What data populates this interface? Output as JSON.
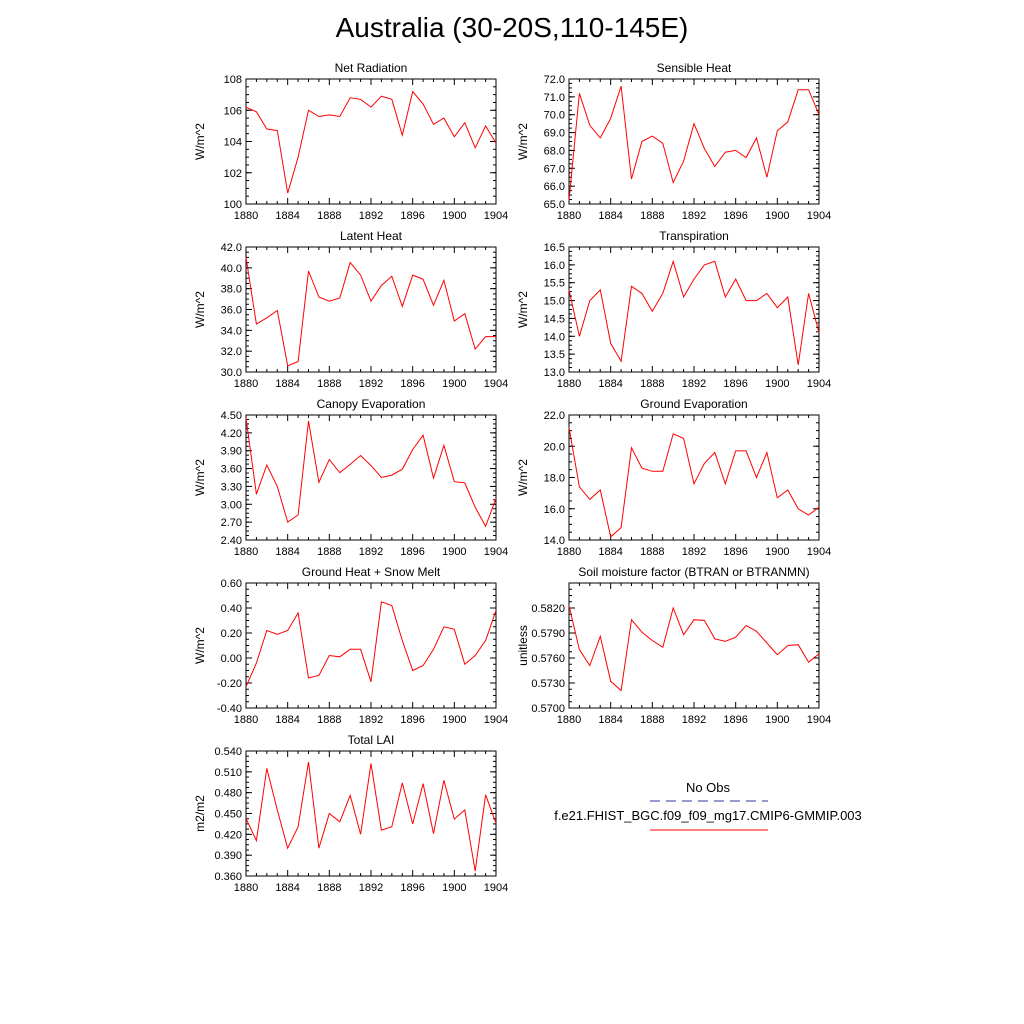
{
  "title": "Australia (30-20S,110-145E)",
  "line_color": "#ff0000",
  "obs_color": "#3333aa",
  "legend": {
    "obs_label": "No Obs",
    "model_label": "f.e21.FHIST_BGC.f09_f09_mg17.CMIP6-GMMIP.003"
  },
  "x_ticks": [
    "1880",
    "1884",
    "1888",
    "1892",
    "1896",
    "1900",
    "1904"
  ],
  "chart_data": [
    {
      "type": "line",
      "title": "Net Radiation",
      "ylabel": "W/m^2",
      "xlim": [
        1880,
        1904
      ],
      "ylim": [
        100,
        108
      ],
      "y_ticks": [
        "100",
        "102",
        "104",
        "106",
        "108"
      ],
      "x": [
        1880,
        1881,
        1882,
        1883,
        1884,
        1885,
        1886,
        1887,
        1888,
        1889,
        1890,
        1891,
        1892,
        1893,
        1894,
        1895,
        1896,
        1897,
        1898,
        1899,
        1900,
        1901,
        1902,
        1903,
        1904
      ],
      "series": [
        {
          "values": [
            106.2,
            105.9,
            104.8,
            104.7,
            100.7,
            103.0,
            106.0,
            105.6,
            105.7,
            105.6,
            106.8,
            106.7,
            106.2,
            106.9,
            106.7,
            104.4,
            107.2,
            106.4,
            105.1,
            105.5,
            104.3,
            105.2,
            103.6,
            105.0,
            103.9
          ]
        }
      ]
    },
    {
      "type": "line",
      "title": "Sensible Heat",
      "ylabel": "W/m^2",
      "xlim": [
        1880,
        1904
      ],
      "ylim": [
        65.0,
        72.0
      ],
      "y_ticks": [
        "65.0",
        "66.0",
        "67.0",
        "68.0",
        "69.0",
        "70.0",
        "71.0",
        "72.0"
      ],
      "x": [
        1880,
        1881,
        1882,
        1883,
        1884,
        1885,
        1886,
        1887,
        1888,
        1889,
        1890,
        1891,
        1892,
        1893,
        1894,
        1895,
        1896,
        1897,
        1898,
        1899,
        1900,
        1901,
        1902,
        1903,
        1904
      ],
      "series": [
        {
          "values": [
            65.2,
            71.2,
            69.4,
            68.7,
            69.8,
            71.6,
            66.4,
            68.5,
            68.8,
            68.4,
            66.2,
            67.4,
            69.5,
            68.1,
            67.1,
            67.9,
            68.0,
            67.6,
            68.7,
            66.5,
            69.1,
            69.6,
            71.4,
            71.4,
            70.0
          ]
        }
      ]
    },
    {
      "type": "line",
      "title": "Latent Heat",
      "ylabel": "W/m^2",
      "xlim": [
        1880,
        1904
      ],
      "ylim": [
        30.0,
        42.0
      ],
      "y_ticks": [
        "30.0",
        "32.0",
        "34.0",
        "36.0",
        "38.0",
        "40.0",
        "42.0"
      ],
      "x": [
        1880,
        1881,
        1882,
        1883,
        1884,
        1885,
        1886,
        1887,
        1888,
        1889,
        1890,
        1891,
        1892,
        1893,
        1894,
        1895,
        1896,
        1897,
        1898,
        1899,
        1900,
        1901,
        1902,
        1903,
        1904
      ],
      "series": [
        {
          "values": [
            41.0,
            34.6,
            35.2,
            35.9,
            30.6,
            31.0,
            39.7,
            37.2,
            36.8,
            37.1,
            40.5,
            39.3,
            36.8,
            38.3,
            39.2,
            36.3,
            39.3,
            38.9,
            36.4,
            38.8,
            34.9,
            35.6,
            32.2,
            33.4,
            33.4
          ]
        }
      ]
    },
    {
      "type": "line",
      "title": "Transpiration",
      "ylabel": "W/m^2",
      "xlim": [
        1880,
        1904
      ],
      "ylim": [
        13.0,
        16.5
      ],
      "y_ticks": [
        "13.0",
        "13.5",
        "14.0",
        "14.5",
        "15.0",
        "15.5",
        "16.0",
        "16.5"
      ],
      "x": [
        1880,
        1881,
        1882,
        1883,
        1884,
        1885,
        1886,
        1887,
        1888,
        1889,
        1890,
        1891,
        1892,
        1893,
        1894,
        1895,
        1896,
        1897,
        1898,
        1899,
        1900,
        1901,
        1902,
        1903,
        1904
      ],
      "series": [
        {
          "values": [
            15.3,
            14.0,
            15.0,
            15.3,
            13.8,
            13.3,
            15.4,
            15.2,
            14.7,
            15.2,
            16.1,
            15.1,
            15.6,
            16.0,
            16.1,
            15.1,
            15.6,
            15.0,
            15.0,
            15.2,
            14.8,
            15.1,
            13.2,
            15.2,
            14.1
          ]
        }
      ]
    },
    {
      "type": "line",
      "title": "Canopy Evaporation",
      "ylabel": "W/m^2",
      "xlim": [
        1880,
        1904
      ],
      "ylim": [
        2.4,
        4.5
      ],
      "y_ticks": [
        "2.40",
        "2.70",
        "3.00",
        "3.30",
        "3.60",
        "3.90",
        "4.20",
        "4.50"
      ],
      "x": [
        1880,
        1881,
        1882,
        1883,
        1884,
        1885,
        1886,
        1887,
        1888,
        1889,
        1890,
        1891,
        1892,
        1893,
        1894,
        1895,
        1896,
        1897,
        1898,
        1899,
        1900,
        1901,
        1902,
        1903,
        1904
      ],
      "series": [
        {
          "values": [
            4.45,
            3.17,
            3.66,
            3.3,
            2.7,
            2.82,
            4.4,
            3.37,
            3.75,
            3.53,
            3.67,
            3.82,
            3.65,
            3.45,
            3.49,
            3.59,
            3.92,
            4.16,
            3.44,
            3.99,
            3.38,
            3.36,
            2.95,
            2.63,
            3.1
          ]
        }
      ]
    },
    {
      "type": "line",
      "title": "Ground Evaporation",
      "ylabel": "W/m^2",
      "xlim": [
        1880,
        1904
      ],
      "ylim": [
        14.0,
        22.0
      ],
      "y_ticks": [
        "14.0",
        "16.0",
        "18.0",
        "20.0",
        "22.0"
      ],
      "x": [
        1880,
        1881,
        1882,
        1883,
        1884,
        1885,
        1886,
        1887,
        1888,
        1889,
        1890,
        1891,
        1892,
        1893,
        1894,
        1895,
        1896,
        1897,
        1898,
        1899,
        1900,
        1901,
        1902,
        1903,
        1904
      ],
      "series": [
        {
          "values": [
            21.2,
            17.4,
            16.6,
            17.2,
            14.2,
            14.8,
            19.9,
            18.6,
            18.4,
            18.4,
            20.8,
            20.5,
            17.6,
            18.9,
            19.6,
            17.6,
            19.7,
            19.7,
            18.0,
            19.6,
            16.7,
            17.2,
            16.0,
            15.6,
            16.1
          ]
        }
      ]
    },
    {
      "type": "line",
      "title": "Ground Heat + Snow Melt",
      "ylabel": "W/m^2",
      "xlim": [
        1880,
        1904
      ],
      "ylim": [
        -0.4,
        0.6
      ],
      "y_ticks": [
        "-0.40",
        "-0.20",
        "0.00",
        "0.20",
        "0.40",
        "0.60"
      ],
      "x": [
        1880,
        1881,
        1882,
        1883,
        1884,
        1885,
        1886,
        1887,
        1888,
        1889,
        1890,
        1891,
        1892,
        1893,
        1894,
        1895,
        1896,
        1897,
        1898,
        1899,
        1900,
        1901,
        1902,
        1903,
        1904
      ],
      "series": [
        {
          "values": [
            -0.23,
            -0.04,
            0.22,
            0.19,
            0.22,
            0.36,
            -0.16,
            -0.14,
            0.02,
            0.01,
            0.07,
            0.07,
            -0.19,
            0.45,
            0.42,
            0.14,
            -0.1,
            -0.06,
            0.07,
            0.25,
            0.23,
            -0.05,
            0.02,
            0.14,
            0.38
          ]
        }
      ]
    },
    {
      "type": "line",
      "title": "Soil moisture factor (BTRAN or BTRANMN)",
      "ylabel": "unitless",
      "xlim": [
        1880,
        1904
      ],
      "ylim": [
        0.57,
        0.585
      ],
      "y_ticks": [
        "0.5700",
        "0.5730",
        "0.5760",
        "0.5790",
        "0.5820"
      ],
      "x": [
        1880,
        1881,
        1882,
        1883,
        1884,
        1885,
        1886,
        1887,
        1888,
        1889,
        1890,
        1891,
        1892,
        1893,
        1894,
        1895,
        1896,
        1897,
        1898,
        1899,
        1900,
        1901,
        1902,
        1903,
        1904
      ],
      "series": [
        {
          "values": [
            0.5823,
            0.577,
            0.5751,
            0.5786,
            0.5732,
            0.5721,
            0.5806,
            0.5791,
            0.5781,
            0.5773,
            0.582,
            0.5788,
            0.5806,
            0.5805,
            0.5783,
            0.578,
            0.5785,
            0.5799,
            0.5792,
            0.5778,
            0.5764,
            0.5775,
            0.5776,
            0.5755,
            0.5765
          ]
        }
      ]
    },
    {
      "type": "line",
      "title": "Total LAI",
      "ylabel": "m2/m2",
      "xlim": [
        1880,
        1904
      ],
      "ylim": [
        0.36,
        0.54
      ],
      "y_ticks": [
        "0.360",
        "0.390",
        "0.420",
        "0.450",
        "0.480",
        "0.510",
        "0.540"
      ],
      "x": [
        1880,
        1881,
        1882,
        1883,
        1884,
        1885,
        1886,
        1887,
        1888,
        1889,
        1890,
        1891,
        1892,
        1893,
        1894,
        1895,
        1896,
        1897,
        1898,
        1899,
        1900,
        1901,
        1902,
        1903,
        1904
      ],
      "series": [
        {
          "values": [
            0.443,
            0.411,
            0.515,
            0.455,
            0.4,
            0.431,
            0.524,
            0.4,
            0.45,
            0.438,
            0.476,
            0.42,
            0.522,
            0.426,
            0.431,
            0.494,
            0.435,
            0.493,
            0.421,
            0.498,
            0.442,
            0.455,
            0.367,
            0.477,
            0.436
          ]
        }
      ]
    }
  ]
}
